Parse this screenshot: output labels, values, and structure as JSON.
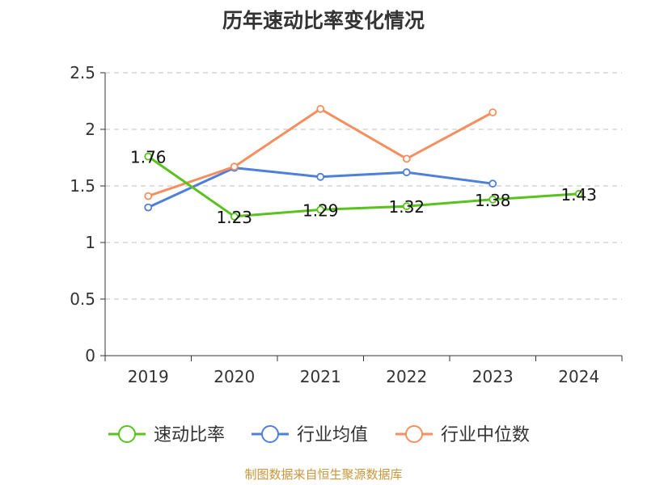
{
  "chart_data": {
    "type": "line",
    "title": "历年速动比率变化情况",
    "categories": [
      "2019",
      "2020",
      "2021",
      "2022",
      "2023",
      "2024"
    ],
    "ylim": [
      0,
      2.5
    ],
    "yticks": [
      "0",
      "0.5",
      "1",
      "1.5",
      "2",
      "2.5"
    ],
    "grid": true,
    "legend_position": "bottom",
    "series": [
      {
        "name": "速动比率",
        "color": "#5ac21e",
        "values": [
          1.76,
          1.23,
          1.29,
          1.32,
          1.38,
          1.43
        ],
        "labels": [
          "1.76",
          "1.23",
          "1.29",
          "1.32",
          "1.38",
          "1.43"
        ]
      },
      {
        "name": "行业均值",
        "color": "#4e7fd9",
        "values": [
          1.31,
          1.66,
          1.58,
          1.62,
          1.52,
          null
        ]
      },
      {
        "name": "行业中位数",
        "color": "#f5905e",
        "values": [
          1.41,
          1.67,
          2.18,
          1.74,
          2.15,
          null
        ]
      }
    ]
  },
  "footer": "制图数据来自恒生聚源数据库"
}
